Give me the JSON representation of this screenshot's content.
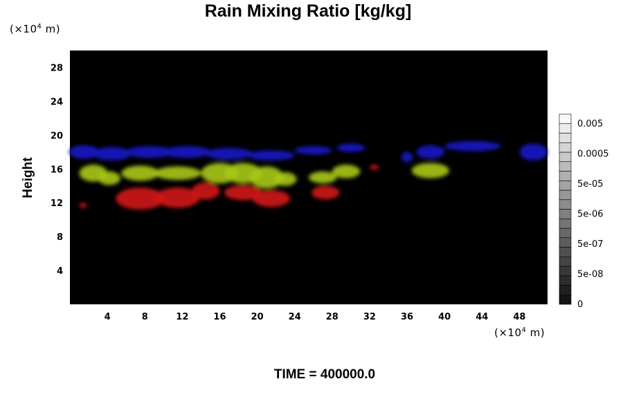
{
  "chart_data": {
    "type": "heatmap",
    "title": "Rain Mixing Ratio [kg/kg]",
    "ylabel": "Height",
    "xlabel": "",
    "y_unit_prefix": "(×10",
    "y_unit_exp": "4",
    "y_unit_suffix": " m)",
    "x_unit_prefix": "(×10",
    "x_unit_exp": "4",
    "x_unit_suffix": " m)",
    "xlim": [
      0,
      51
    ],
    "ylim": [
      0,
      30
    ],
    "x_ticks": [
      4,
      8,
      12,
      16,
      20,
      24,
      28,
      32,
      36,
      40,
      44,
      48
    ],
    "y_ticks": [
      4,
      8,
      12,
      16,
      20,
      24,
      28
    ],
    "x_tick_labels": [
      "4",
      "8",
      "12",
      "16",
      "20",
      "24",
      "28",
      "32",
      "36",
      "40",
      "44",
      "48"
    ],
    "y_tick_labels": [
      "4",
      "8",
      "12",
      "16",
      "20",
      "24",
      "28"
    ],
    "background_color": "#000000",
    "colorbar": {
      "labels": [
        "0.005",
        "0.0005",
        "5e-05",
        "5e-06",
        "5e-07",
        "5e-08",
        "0"
      ],
      "levels": 20
    },
    "series": [
      {
        "color": "#1a1ac8",
        "blobs": [
          {
            "x": 1.5,
            "y": 18.0,
            "rx": 1.6,
            "ry": 0.8
          },
          {
            "x": 4.5,
            "y": 17.8,
            "rx": 2.0,
            "ry": 0.8
          },
          {
            "x": 8.5,
            "y": 18.0,
            "rx": 2.5,
            "ry": 0.7
          },
          {
            "x": 12.5,
            "y": 18.0,
            "rx": 2.5,
            "ry": 0.7
          },
          {
            "x": 17.0,
            "y": 17.8,
            "rx": 2.5,
            "ry": 0.7
          },
          {
            "x": 21.5,
            "y": 17.6,
            "rx": 2.5,
            "ry": 0.6
          },
          {
            "x": 26.0,
            "y": 18.2,
            "rx": 2.0,
            "ry": 0.5
          },
          {
            "x": 30.0,
            "y": 18.5,
            "rx": 1.5,
            "ry": 0.5
          },
          {
            "x": 36.0,
            "y": 17.4,
            "rx": 0.6,
            "ry": 0.6
          },
          {
            "x": 38.5,
            "y": 18.0,
            "rx": 1.5,
            "ry": 0.8
          },
          {
            "x": 43.0,
            "y": 18.7,
            "rx": 3.0,
            "ry": 0.6
          },
          {
            "x": 49.5,
            "y": 18.0,
            "rx": 1.5,
            "ry": 1.0
          }
        ]
      },
      {
        "color": "#a8c814",
        "blobs": [
          {
            "x": 2.5,
            "y": 15.5,
            "rx": 1.5,
            "ry": 1.0
          },
          {
            "x": 4.2,
            "y": 14.9,
            "rx": 1.2,
            "ry": 0.8
          },
          {
            "x": 7.5,
            "y": 15.5,
            "rx": 2.0,
            "ry": 0.9
          },
          {
            "x": 11.5,
            "y": 15.5,
            "rx": 2.5,
            "ry": 0.8
          },
          {
            "x": 16.0,
            "y": 15.5,
            "rx": 2.0,
            "ry": 1.2
          },
          {
            "x": 18.5,
            "y": 15.5,
            "rx": 2.0,
            "ry": 1.2
          },
          {
            "x": 21.0,
            "y": 15.0,
            "rx": 1.8,
            "ry": 1.3
          },
          {
            "x": 23.0,
            "y": 14.8,
            "rx": 1.2,
            "ry": 0.8
          },
          {
            "x": 27.0,
            "y": 15.0,
            "rx": 1.5,
            "ry": 0.7
          },
          {
            "x": 29.5,
            "y": 15.7,
            "rx": 1.5,
            "ry": 0.8
          },
          {
            "x": 38.5,
            "y": 15.8,
            "rx": 2.0,
            "ry": 0.9
          }
        ]
      },
      {
        "color": "#d21414",
        "blobs": [
          {
            "x": 1.4,
            "y": 11.7,
            "rx": 0.4,
            "ry": 0.3
          },
          {
            "x": 7.5,
            "y": 12.5,
            "rx": 2.6,
            "ry": 1.3
          },
          {
            "x": 11.5,
            "y": 12.6,
            "rx": 2.4,
            "ry": 1.2
          },
          {
            "x": 14.5,
            "y": 13.4,
            "rx": 1.5,
            "ry": 1.0
          },
          {
            "x": 18.5,
            "y": 13.2,
            "rx": 2.0,
            "ry": 0.9
          },
          {
            "x": 21.5,
            "y": 12.5,
            "rx": 2.0,
            "ry": 1.0
          },
          {
            "x": 27.3,
            "y": 13.2,
            "rx": 1.5,
            "ry": 0.8
          },
          {
            "x": 32.5,
            "y": 16.2,
            "rx": 0.5,
            "ry": 0.3
          }
        ]
      }
    ]
  },
  "footer": {
    "time_label": "TIME = 400000.0"
  }
}
